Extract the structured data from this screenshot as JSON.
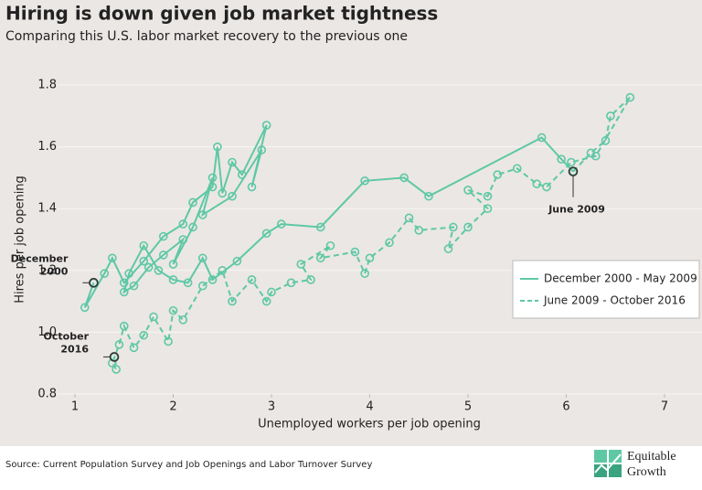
{
  "chart_data": {
    "type": "connected-scatter",
    "title": "Hiring is down given job market tightness",
    "subtitle": "Comparing this U.S. labor market recovery to the previous one",
    "x_label": "Unemployed workers per job opening",
    "y_label": "Hires per job opening",
    "xlim": [
      1,
      7
    ],
    "ylim": [
      0.8,
      1.8
    ],
    "xticks": [
      1,
      2,
      3,
      4,
      5,
      6,
      7
    ],
    "yticks": [
      0.8,
      {
        "value": 1,
        "label": "1.0"
      },
      1.2,
      1.4,
      1.6,
      1.8
    ],
    "grid": true,
    "legend": "right",
    "series": [
      {
        "name": "December 2000 - May 2009",
        "color": "#5ec8a5",
        "dash": false,
        "x": [
          1.19,
          1.1,
          1.3,
          1.38,
          1.5,
          1.7,
          1.9,
          2.1,
          2.2,
          2.4,
          2.45,
          2.5,
          2.6,
          2.7,
          2.95,
          2.8,
          2.9,
          2.6,
          2.3,
          2.4,
          2.2,
          2.0,
          2.1,
          1.9,
          1.75,
          1.6,
          1.5,
          1.55,
          1.7,
          1.85,
          2.0,
          2.15,
          2.3,
          2.4,
          2.65,
          2.95,
          3.1,
          3.5,
          3.95,
          4.35,
          4.6,
          5.75,
          5.95,
          6.07
        ],
        "values": [
          1.16,
          1.08,
          1.19,
          1.24,
          1.16,
          1.23,
          1.31,
          1.35,
          1.42,
          1.47,
          1.6,
          1.45,
          1.55,
          1.51,
          1.67,
          1.47,
          1.59,
          1.44,
          1.38,
          1.5,
          1.34,
          1.22,
          1.3,
          1.25,
          1.21,
          1.15,
          1.13,
          1.19,
          1.28,
          1.2,
          1.17,
          1.16,
          1.24,
          1.17,
          1.23,
          1.32,
          1.35,
          1.34,
          1.49,
          1.5,
          1.44,
          1.63,
          1.56,
          1.52
        ]
      },
      {
        "name": "June 2009 - October 2016",
        "color": "#5ec8a5",
        "dash": true,
        "x": [
          6.07,
          6.25,
          6.4,
          6.45,
          6.65,
          6.3,
          6.05,
          5.8,
          5.7,
          5.5,
          5.3,
          5.2,
          5.0,
          5.2,
          5.0,
          4.8,
          4.85,
          4.5,
          4.4,
          4.2,
          4.0,
          3.95,
          3.85,
          3.5,
          3.6,
          3.3,
          3.4,
          3.2,
          3.0,
          2.95,
          2.8,
          2.6,
          2.5,
          2.3,
          2.1,
          2.0,
          1.95,
          1.8,
          1.7,
          1.6,
          1.5,
          1.45,
          1.38,
          1.42,
          1.4
        ],
        "values": [
          1.52,
          1.58,
          1.62,
          1.7,
          1.76,
          1.57,
          1.55,
          1.47,
          1.48,
          1.53,
          1.51,
          1.44,
          1.46,
          1.4,
          1.34,
          1.27,
          1.34,
          1.33,
          1.37,
          1.29,
          1.24,
          1.19,
          1.26,
          1.24,
          1.28,
          1.22,
          1.17,
          1.16,
          1.13,
          1.1,
          1.17,
          1.1,
          1.2,
          1.15,
          1.04,
          1.07,
          0.97,
          1.05,
          0.99,
          0.95,
          1.02,
          0.96,
          0.9,
          0.88,
          0.92
        ]
      }
    ],
    "annotations": [
      {
        "lines": [
          "December",
          "2000"
        ],
        "x": 1.19,
        "y": 1.16
      },
      {
        "lines": [
          "October",
          "2016"
        ],
        "x": 1.4,
        "y": 0.92
      },
      {
        "lines": [
          "June 2009"
        ],
        "x": 6.07,
        "y": 1.52
      }
    ]
  },
  "footer": {
    "source": "Source: Current Population Survey and Job Openings and Labor Turnover Survey",
    "logo": [
      "Equitable",
      "Growth"
    ]
  }
}
